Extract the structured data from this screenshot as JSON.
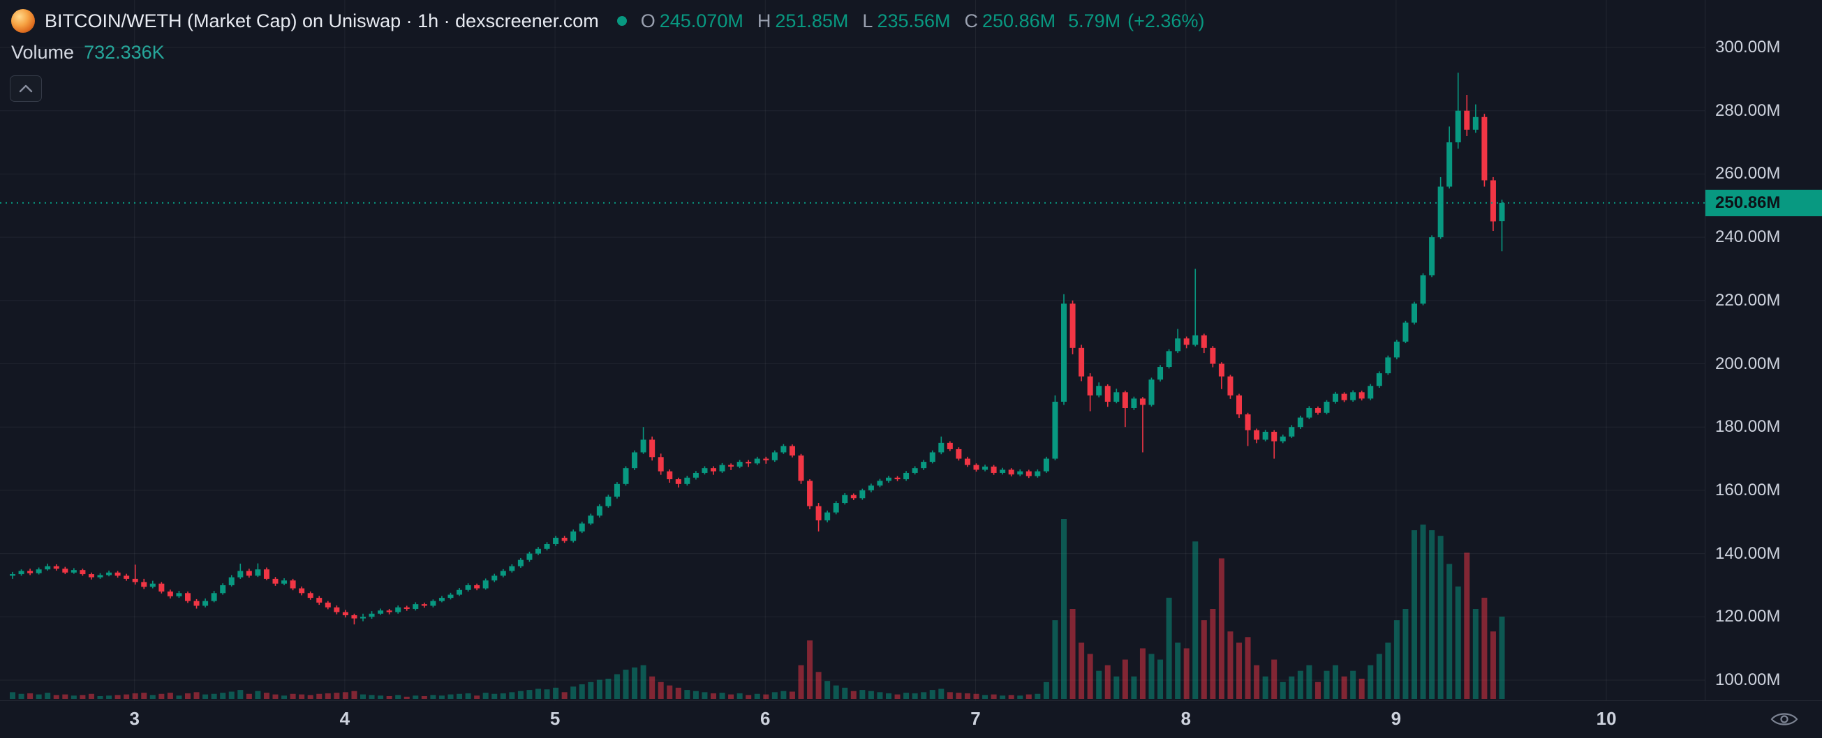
{
  "header": {
    "title": "BITCOIN/WETH (Market Cap) on Uniswap · 1h · dexscreener.com",
    "ohlc": {
      "o_label": "O",
      "o_value": "245.070M",
      "h_label": "H",
      "h_value": "251.85M",
      "l_label": "L",
      "l_value": "235.56M",
      "c_label": "C",
      "c_value": "250.86M",
      "change_abs": "5.79M",
      "change_pct": "(+2.36%)"
    },
    "volume_label": "Volume",
    "volume_value": "732.336K"
  },
  "colors": {
    "up": "#089981",
    "down": "#f23645",
    "accent_text": "#089981",
    "volume_value_text": "#26a69a",
    "background": "#131722",
    "grid": "rgba(255,255,255,0.06)",
    "axis_text": "#ced3de",
    "badge_bg": "#089981",
    "badge_text": "#0d1117"
  },
  "price_axis": {
    "ticks": [
      {
        "label": "300.00M",
        "value": 300
      },
      {
        "label": "280.00M",
        "value": 280
      },
      {
        "label": "260.00M",
        "value": 260
      },
      {
        "label": "240.00M",
        "value": 240
      },
      {
        "label": "220.00M",
        "value": 220
      },
      {
        "label": "200.00M",
        "value": 200
      },
      {
        "label": "180.00M",
        "value": 180
      },
      {
        "label": "160.00M",
        "value": 160
      },
      {
        "label": "140.00M",
        "value": 140
      },
      {
        "label": "120.00M",
        "value": 120
      },
      {
        "label": "100.00M",
        "value": 100
      }
    ],
    "current_price": {
      "label": "250.86M",
      "value": 250.86
    }
  },
  "time_axis": {
    "labels": [
      {
        "label": "3",
        "day": 3
      },
      {
        "label": "4",
        "day": 4
      },
      {
        "label": "5",
        "day": 5
      },
      {
        "label": "6",
        "day": 6
      },
      {
        "label": "7",
        "day": 7
      },
      {
        "label": "8",
        "day": 8
      },
      {
        "label": "9",
        "day": 9
      },
      {
        "label": "10",
        "day": 10
      }
    ]
  },
  "chart_data": {
    "type": "candlestick",
    "title": "BITCOIN/WETH (Market Cap) on Uniswap · 1h",
    "interval": "1h",
    "price_unit": "M",
    "volume_unit": "K",
    "ylim": [
      94,
      315
    ],
    "y_ticks": [
      300,
      280,
      260,
      240,
      220,
      200,
      180,
      160,
      140,
      120,
      100
    ],
    "x_day_labels": [
      3,
      4,
      5,
      6,
      7,
      8,
      9,
      10
    ],
    "x_start_day": 2.42,
    "hours_per_candle": 1,
    "current_price": 250.86,
    "last_candle": {
      "o": 245.07,
      "h": 251.85,
      "l": 235.56,
      "c": 250.86,
      "change_abs": 5.79,
      "change_pct": 2.36,
      "volume_k": 732.336
    },
    "columns": [
      "open",
      "high",
      "low",
      "close",
      "volume_k"
    ],
    "candles": [
      [
        133.0,
        134.2,
        132.0,
        133.5,
        60
      ],
      [
        133.5,
        135.0,
        133.0,
        134.5,
        45
      ],
      [
        134.5,
        135.2,
        133.2,
        133.8,
        50
      ],
      [
        133.8,
        135.6,
        133.4,
        135.0,
        40
      ],
      [
        135.0,
        136.8,
        134.6,
        136.0,
        55
      ],
      [
        136.0,
        136.6,
        134.6,
        135.2,
        35
      ],
      [
        135.2,
        135.8,
        133.5,
        134.0,
        40
      ],
      [
        134.0,
        135.4,
        133.6,
        134.8,
        30
      ],
      [
        134.8,
        135.2,
        133.0,
        133.5,
        35
      ],
      [
        133.5,
        134.0,
        131.8,
        132.5,
        45
      ],
      [
        132.5,
        133.8,
        132.0,
        133.2,
        25
      ],
      [
        133.2,
        134.6,
        132.8,
        134.0,
        30
      ],
      [
        134.0,
        134.5,
        132.4,
        133.0,
        35
      ],
      [
        133.0,
        133.6,
        131.4,
        132.0,
        40
      ],
      [
        132.0,
        136.5,
        130.2,
        131.0,
        50
      ],
      [
        131.0,
        132.0,
        128.8,
        129.5,
        55
      ],
      [
        129.5,
        131.4,
        129.0,
        130.5,
        35
      ],
      [
        130.5,
        131.0,
        127.4,
        128.0,
        45
      ],
      [
        128.0,
        128.6,
        125.8,
        126.5,
        55
      ],
      [
        126.5,
        128.2,
        126.0,
        127.5,
        30
      ],
      [
        127.5,
        128.0,
        124.4,
        125.0,
        50
      ],
      [
        125.0,
        125.6,
        122.6,
        123.5,
        60
      ],
      [
        123.5,
        125.8,
        123.0,
        125.0,
        40
      ],
      [
        125.0,
        128.2,
        124.6,
        127.5,
        45
      ],
      [
        127.5,
        130.6,
        127.0,
        130.0,
        55
      ],
      [
        130.0,
        133.2,
        129.6,
        132.5,
        65
      ],
      [
        132.5,
        136.8,
        132.0,
        134.5,
        80
      ],
      [
        134.5,
        135.2,
        132.4,
        133.0,
        45
      ],
      [
        133.0,
        136.9,
        132.6,
        135.0,
        70
      ],
      [
        135.0,
        135.6,
        131.6,
        132.0,
        55
      ],
      [
        132.0,
        132.6,
        129.8,
        130.5,
        40
      ],
      [
        130.5,
        132.2,
        130.0,
        131.5,
        30
      ],
      [
        131.5,
        132.0,
        128.4,
        129.0,
        45
      ],
      [
        129.0,
        129.6,
        126.8,
        127.5,
        40
      ],
      [
        127.5,
        128.0,
        125.4,
        126.0,
        35
      ],
      [
        126.0,
        126.6,
        123.8,
        124.5,
        45
      ],
      [
        124.5,
        125.0,
        122.4,
        123.0,
        50
      ],
      [
        123.0,
        123.6,
        120.8,
        121.5,
        55
      ],
      [
        121.5,
        122.2,
        119.8,
        120.5,
        60
      ],
      [
        120.5,
        121.0,
        117.6,
        119.5,
        70
      ],
      [
        119.5,
        121.0,
        118.6,
        120.0,
        40
      ],
      [
        120.0,
        121.8,
        119.4,
        121.0,
        35
      ],
      [
        121.0,
        122.6,
        120.6,
        122.0,
        30
      ],
      [
        122.0,
        122.5,
        120.8,
        121.5,
        25
      ],
      [
        121.5,
        123.6,
        121.0,
        123.0,
        35
      ],
      [
        123.0,
        123.5,
        121.9,
        122.5,
        20
      ],
      [
        122.5,
        124.6,
        122.0,
        124.0,
        30
      ],
      [
        124.0,
        124.5,
        122.9,
        123.5,
        25
      ],
      [
        123.5,
        125.5,
        123.0,
        125.0,
        35
      ],
      [
        125.0,
        126.6,
        124.6,
        126.0,
        30
      ],
      [
        126.0,
        127.6,
        125.5,
        127.0,
        40
      ],
      [
        127.0,
        129.1,
        126.6,
        128.5,
        45
      ],
      [
        128.5,
        130.6,
        128.0,
        130.0,
        50
      ],
      [
        130.0,
        130.5,
        128.4,
        129.0,
        30
      ],
      [
        129.0,
        132.1,
        128.6,
        131.5,
        55
      ],
      [
        131.5,
        133.6,
        131.0,
        133.0,
        45
      ],
      [
        133.0,
        135.1,
        132.5,
        134.5,
        50
      ],
      [
        134.5,
        136.6,
        134.0,
        136.0,
        60
      ],
      [
        136.0,
        138.6,
        135.5,
        138.0,
        70
      ],
      [
        138.0,
        140.6,
        137.4,
        140.0,
        80
      ],
      [
        140.0,
        142.1,
        139.5,
        141.5,
        90
      ],
      [
        141.5,
        143.6,
        141.0,
        143.0,
        85
      ],
      [
        143.0,
        145.6,
        142.4,
        145.0,
        100
      ],
      [
        145.0,
        145.6,
        143.4,
        144.0,
        60
      ],
      [
        144.0,
        147.6,
        143.5,
        147.0,
        110
      ],
      [
        147.0,
        150.1,
        146.5,
        149.5,
        130
      ],
      [
        149.5,
        152.6,
        149.0,
        152.0,
        150
      ],
      [
        152.0,
        155.6,
        151.4,
        155.0,
        170
      ],
      [
        155.0,
        158.6,
        154.5,
        158.0,
        180
      ],
      [
        158.0,
        162.6,
        157.4,
        162.0,
        220
      ],
      [
        162.0,
        167.6,
        161.5,
        167.0,
        260
      ],
      [
        167.0,
        172.6,
        166.4,
        172.0,
        280
      ],
      [
        172.0,
        180.0,
        171.5,
        176.0,
        300
      ],
      [
        176.0,
        177.0,
        169.4,
        170.5,
        200
      ],
      [
        170.5,
        171.6,
        164.9,
        166.0,
        150
      ],
      [
        166.0,
        166.6,
        162.4,
        163.5,
        120
      ],
      [
        163.5,
        164.0,
        160.9,
        162.0,
        100
      ],
      [
        162.0,
        164.6,
        161.5,
        164.0,
        80
      ],
      [
        164.0,
        166.1,
        163.4,
        165.5,
        70
      ],
      [
        165.5,
        167.6,
        165.0,
        167.0,
        60
      ],
      [
        167.0,
        167.6,
        164.9,
        166.0,
        50
      ],
      [
        166.0,
        168.6,
        165.5,
        168.0,
        55
      ],
      [
        168.0,
        168.5,
        166.4,
        167.5,
        40
      ],
      [
        167.5,
        169.6,
        167.0,
        169.0,
        50
      ],
      [
        169.0,
        169.6,
        167.4,
        168.5,
        35
      ],
      [
        168.5,
        170.6,
        168.0,
        170.0,
        45
      ],
      [
        170.0,
        170.6,
        168.4,
        169.5,
        40
      ],
      [
        169.5,
        172.6,
        169.0,
        172.0,
        60
      ],
      [
        172.0,
        174.6,
        171.5,
        174.0,
        70
      ],
      [
        174.0,
        174.5,
        170.4,
        171.0,
        65
      ],
      [
        171.0,
        171.5,
        162.0,
        163.0,
        300
      ],
      [
        163.0,
        163.5,
        154.0,
        155.0,
        520
      ],
      [
        155.0,
        156.0,
        147.0,
        150.5,
        240
      ],
      [
        150.5,
        153.6,
        149.9,
        153.0,
        160
      ],
      [
        153.0,
        156.6,
        152.4,
        156.0,
        120
      ],
      [
        156.0,
        159.1,
        155.5,
        158.5,
        100
      ],
      [
        158.5,
        159.0,
        156.9,
        157.5,
        70
      ],
      [
        157.5,
        160.5,
        157.0,
        160.0,
        80
      ],
      [
        160.0,
        162.1,
        159.4,
        161.5,
        70
      ],
      [
        161.5,
        163.6,
        161.0,
        163.0,
        60
      ],
      [
        163.0,
        164.6,
        162.4,
        164.0,
        50
      ],
      [
        164.0,
        164.5,
        162.9,
        163.5,
        40
      ],
      [
        163.5,
        166.1,
        163.0,
        165.5,
        55
      ],
      [
        165.5,
        167.6,
        165.0,
        167.0,
        50
      ],
      [
        167.0,
        169.6,
        166.4,
        169.0,
        60
      ],
      [
        169.0,
        172.6,
        168.5,
        172.0,
        80
      ],
      [
        172.0,
        177.0,
        171.4,
        175.0,
        90
      ],
      [
        175.0,
        175.5,
        172.4,
        173.0,
        60
      ],
      [
        173.0,
        173.6,
        169.4,
        170.0,
        55
      ],
      [
        170.0,
        170.6,
        167.4,
        168.0,
        50
      ],
      [
        168.0,
        168.5,
        165.9,
        166.5,
        45
      ],
      [
        166.5,
        168.1,
        166.0,
        167.5,
        35
      ],
      [
        167.5,
        168.0,
        164.9,
        165.5,
        40
      ],
      [
        165.5,
        167.1,
        165.0,
        166.5,
        30
      ],
      [
        166.5,
        167.0,
        164.4,
        165.0,
        35
      ],
      [
        165.0,
        166.6,
        164.5,
        166.0,
        30
      ],
      [
        166.0,
        166.5,
        163.9,
        164.5,
        40
      ],
      [
        164.5,
        166.6,
        164.0,
        166.0,
        45
      ],
      [
        166.0,
        170.6,
        165.5,
        170.0,
        150
      ],
      [
        170.0,
        190.0,
        169.5,
        188.0,
        700
      ],
      [
        188.0,
        222.0,
        187.0,
        219.0,
        1600
      ],
      [
        219.0,
        220.0,
        203.0,
        205.0,
        800
      ],
      [
        205.0,
        206.0,
        194.5,
        196.0,
        500
      ],
      [
        196.0,
        197.0,
        185.0,
        190.0,
        400
      ],
      [
        190.0,
        194.1,
        189.4,
        193.0,
        250
      ],
      [
        193.0,
        193.5,
        186.4,
        188.0,
        300
      ],
      [
        188.0,
        192.1,
        187.5,
        191.0,
        200
      ],
      [
        191.0,
        191.5,
        180.0,
        186.0,
        350
      ],
      [
        186.0,
        189.6,
        185.4,
        189.0,
        200
      ],
      [
        189.0,
        189.5,
        172.0,
        187.0,
        450
      ],
      [
        187.0,
        195.6,
        186.5,
        195.0,
        400
      ],
      [
        195.0,
        199.6,
        194.4,
        199.0,
        350
      ],
      [
        199.0,
        204.6,
        198.5,
        204.0,
        900
      ],
      [
        204.0,
        211.0,
        203.4,
        208.0,
        500
      ],
      [
        208.0,
        208.6,
        204.9,
        206.0,
        450
      ],
      [
        206.0,
        230.0,
        205.5,
        209.0,
        1400
      ],
      [
        209.0,
        209.5,
        203.4,
        205.0,
        700
      ],
      [
        205.0,
        205.6,
        198.9,
        200.0,
        800
      ],
      [
        200.0,
        200.5,
        192.0,
        196.0,
        1250
      ],
      [
        196.0,
        196.5,
        188.9,
        190.0,
        600
      ],
      [
        190.0,
        190.5,
        182.9,
        184.0,
        500
      ],
      [
        184.0,
        184.5,
        174.0,
        179.0,
        550
      ],
      [
        179.0,
        179.5,
        174.9,
        176.0,
        300
      ],
      [
        176.0,
        179.1,
        175.5,
        178.5,
        200
      ],
      [
        178.5,
        179.0,
        170.0,
        175.5,
        350
      ],
      [
        175.5,
        177.6,
        174.9,
        177.0,
        150
      ],
      [
        177.0,
        180.6,
        176.5,
        180.0,
        200
      ],
      [
        180.0,
        183.6,
        179.4,
        183.0,
        250
      ],
      [
        183.0,
        186.6,
        182.5,
        186.0,
        300
      ],
      [
        186.0,
        186.5,
        183.9,
        184.5,
        150
      ],
      [
        184.5,
        188.5,
        184.0,
        188.0,
        250
      ],
      [
        188.0,
        191.1,
        187.4,
        190.5,
        300
      ],
      [
        190.5,
        191.0,
        187.9,
        188.5,
        200
      ],
      [
        188.5,
        191.6,
        188.0,
        191.0,
        250
      ],
      [
        191.0,
        191.5,
        188.4,
        189.0,
        180
      ],
      [
        189.0,
        193.6,
        188.5,
        193.0,
        300
      ],
      [
        193.0,
        197.6,
        192.4,
        197.0,
        400
      ],
      [
        197.0,
        202.6,
        196.5,
        202.0,
        500
      ],
      [
        202.0,
        207.6,
        201.4,
        207.0,
        700
      ],
      [
        207.0,
        213.6,
        206.5,
        213.0,
        800
      ],
      [
        213.0,
        219.6,
        212.4,
        219.0,
        1500
      ],
      [
        219.0,
        228.6,
        218.5,
        228.0,
        1550
      ],
      [
        228.0,
        240.6,
        227.4,
        240.0,
        1500
      ],
      [
        240.0,
        259.0,
        239.5,
        256.0,
        1450
      ],
      [
        256.0,
        275.0,
        255.4,
        270.0,
        1200
      ],
      [
        270.0,
        292.0,
        268.0,
        280.0,
        1000
      ],
      [
        280.0,
        285.0,
        272.0,
        274.0,
        1300
      ],
      [
        274.0,
        282.0,
        273.0,
        278.0,
        800
      ],
      [
        278.0,
        279.0,
        256.0,
        258.0,
        900
      ],
      [
        258.0,
        259.0,
        242.0,
        245.0,
        600
      ],
      [
        245.07,
        251.85,
        235.56,
        250.86,
        732
      ]
    ]
  }
}
